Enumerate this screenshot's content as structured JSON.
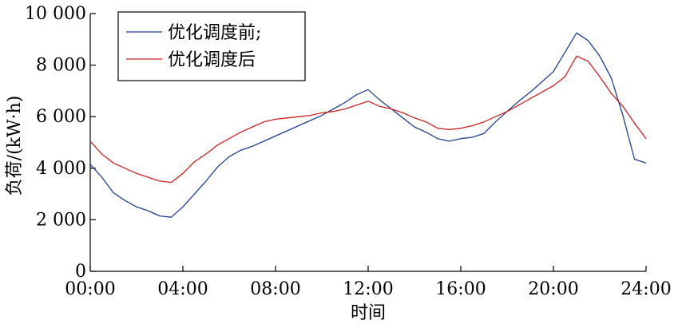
{
  "chart_data": {
    "type": "line",
    "title": "",
    "xlabel": "时间",
    "ylabel": "负荷/(kW·h)",
    "xlim": [
      0,
      24
    ],
    "ylim": [
      0,
      10000
    ],
    "x_ticks": [
      {
        "value": 0,
        "label": "00:00"
      },
      {
        "value": 4,
        "label": "04:00"
      },
      {
        "value": 8,
        "label": "08:00"
      },
      {
        "value": 12,
        "label": "12:00"
      },
      {
        "value": 16,
        "label": "16:00"
      },
      {
        "value": 20,
        "label": "20:00"
      },
      {
        "value": 24,
        "label": "24:00"
      }
    ],
    "y_ticks": [
      {
        "value": 0,
        "label": "0"
      },
      {
        "value": 2000,
        "label": "2 000"
      },
      {
        "value": 4000,
        "label": "4 000"
      },
      {
        "value": 6000,
        "label": "6 000"
      },
      {
        "value": 8000,
        "label": "8 000"
      },
      {
        "value": 10000,
        "label": "10 000"
      }
    ],
    "legend": "top-left",
    "grid": false,
    "x": [
      0,
      0.5,
      1,
      1.5,
      2,
      2.5,
      3,
      3.5,
      4,
      4.5,
      5,
      5.5,
      6,
      6.5,
      7,
      7.5,
      8,
      8.5,
      9,
      9.5,
      10,
      10.5,
      11,
      11.5,
      12,
      12.5,
      13,
      13.5,
      14,
      14.5,
      15,
      15.5,
      16,
      16.5,
      17,
      17.5,
      18,
      18.5,
      19,
      19.5,
      20,
      20.5,
      21,
      21.5,
      22,
      22.5,
      23,
      23.5,
      24
    ],
    "series": [
      {
        "name": "优化调度前;",
        "color": "#1f3f8f",
        "values": [
          4150,
          3650,
          3050,
          2750,
          2500,
          2350,
          2150,
          2100,
          2500,
          3000,
          3500,
          4050,
          4450,
          4700,
          4850,
          5050,
          5250,
          5450,
          5650,
          5850,
          6050,
          6300,
          6550,
          6850,
          7050,
          6650,
          6300,
          5950,
          5600,
          5400,
          5150,
          5050,
          5150,
          5200,
          5350,
          5800,
          6200,
          6600,
          6950,
          7350,
          7750,
          8500,
          9250,
          8950,
          8350,
          7500,
          6050,
          4350,
          4200
        ]
      },
      {
        "name": "优化调度后",
        "color": "#cc2222",
        "values": [
          5050,
          4550,
          4200,
          4000,
          3800,
          3650,
          3500,
          3450,
          3800,
          4250,
          4550,
          4900,
          5150,
          5400,
          5600,
          5800,
          5900,
          5950,
          6000,
          6050,
          6150,
          6200,
          6300,
          6450,
          6600,
          6400,
          6300,
          6150,
          5950,
          5800,
          5550,
          5500,
          5550,
          5650,
          5800,
          6000,
          6200,
          6450,
          6700,
          6950,
          7200,
          7550,
          8350,
          8150,
          7550,
          6900,
          6400,
          5750,
          5150
        ]
      }
    ]
  }
}
